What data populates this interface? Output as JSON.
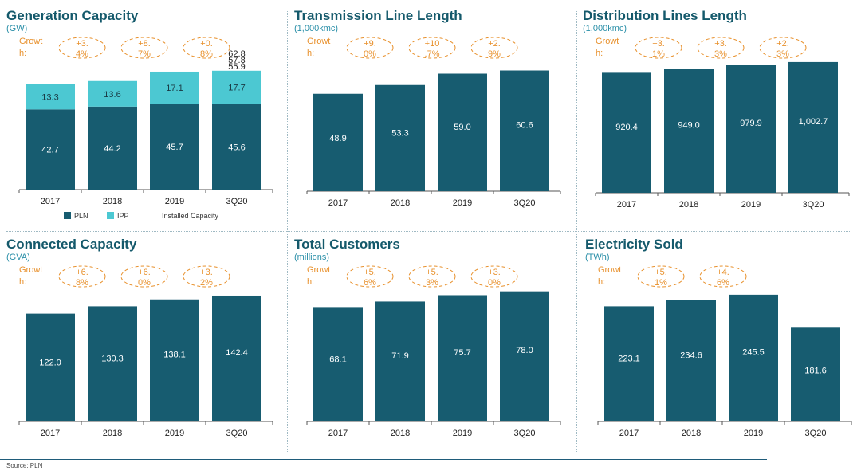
{
  "footer": {
    "source": "Source: PLN"
  },
  "chart_data": [
    {
      "type": "bar",
      "stacked": true,
      "title": "Generation Capacity",
      "unit": "(GW)",
      "growth_label": "Growth:",
      "categories": [
        "2017",
        "2018",
        "2019",
        "3Q20"
      ],
      "series": [
        {
          "name": "PLN",
          "color": "#175c70",
          "values": [
            42.7,
            44.2,
            45.7,
            45.6
          ]
        },
        {
          "name": "IPP",
          "color": "#4cc8d2",
          "values": [
            13.3,
            13.6,
            17.1,
            17.7
          ]
        }
      ],
      "growth": [
        "+3.4%",
        "+8.7%",
        "+0.8%"
      ],
      "installed_capacity_labels": [
        "62.8",
        "57.8",
        "55.9"
      ],
      "legend": [
        "PLN",
        "IPP",
        "Installed Capacity"
      ],
      "legend_position": "bottom",
      "ylim": [
        0,
        70
      ],
      "grid": false
    },
    {
      "type": "bar",
      "title": "Transmission Line Length",
      "unit": "(1,000kmc)",
      "growth_label": "Growth:",
      "categories": [
        "2017",
        "2018",
        "2019",
        "3Q20"
      ],
      "values": [
        48.9,
        53.3,
        59.0,
        60.6
      ],
      "value_labels": [
        "48.9",
        "53.3",
        "59.0",
        "60.6"
      ],
      "growth": [
        "+9.0%",
        "+10.7%",
        "+2.9%"
      ],
      "color": "#175c70",
      "ylim": [
        0,
        66
      ],
      "grid": false
    },
    {
      "type": "bar",
      "title": "Distribution Lines Length",
      "unit": "(1,000kmc)",
      "growth_label": "Growth:",
      "categories": [
        "2017",
        "2018",
        "2019",
        "3Q20"
      ],
      "values": [
        920.4,
        949.0,
        979.9,
        1002.7
      ],
      "value_labels": [
        "920.4",
        "949.0",
        "979.9",
        "1,002.7"
      ],
      "growth": [
        "+3.1%",
        "+3.3%",
        "+2.3%"
      ],
      "color": "#175c70",
      "ylim": [
        0,
        1100
      ],
      "grid": false
    },
    {
      "type": "bar",
      "title": "Connected Capacity",
      "unit": "(GVA)",
      "growth_label": "Growth:",
      "categories": [
        "2017",
        "2018",
        "2019",
        "3Q20"
      ],
      "values": [
        122.0,
        130.3,
        138.1,
        142.4
      ],
      "value_labels": [
        "122.0",
        "130.3",
        "138.1",
        "142.4"
      ],
      "growth": [
        "+6.8%",
        "+6.0%",
        "+3.2%"
      ],
      "color": "#175c70",
      "ylim": [
        0,
        155
      ],
      "grid": false
    },
    {
      "type": "bar",
      "title": "Total Customers",
      "unit": "(millions)",
      "growth_label": "Growth:",
      "categories": [
        "2017",
        "2018",
        "2019",
        "3Q20"
      ],
      "values": [
        68.1,
        71.9,
        75.7,
        78.0
      ],
      "value_labels": [
        "68.1",
        "71.9",
        "75.7",
        "78.0"
      ],
      "growth": [
        "+5.6%",
        "+5.3%",
        "+3.0%"
      ],
      "color": "#175c70",
      "ylim": [
        0,
        85
      ],
      "grid": false
    },
    {
      "type": "bar",
      "title": "Electricity Sold",
      "unit": "(TWh)",
      "growth_label": "Growth:",
      "categories": [
        "2017",
        "2018",
        "2019",
        "3Q20"
      ],
      "values": [
        223.1,
        234.6,
        245.5,
        181.6
      ],
      "value_labels": [
        "223.1",
        "234.6",
        "245.5",
        "181.6"
      ],
      "growth": [
        "+5.1%",
        "+4.6%"
      ],
      "color": "#175c70",
      "ylim": [
        0,
        270
      ],
      "grid": false
    }
  ]
}
